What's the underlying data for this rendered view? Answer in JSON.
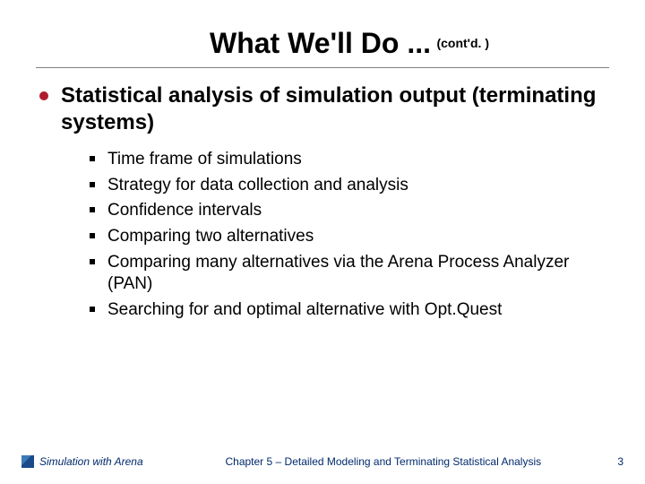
{
  "colors": {
    "bullet_red": "#b01c2e",
    "footer_color": "#002a6c",
    "hr_color": "#808080",
    "background": "#ffffff",
    "text": "#000000"
  },
  "typography": {
    "title_fontsize": 32,
    "title_cont_fontsize": 14,
    "heading_fontsize": 24,
    "subitem_fontsize": 19,
    "footer_fontsize": 12
  },
  "title": {
    "main": "What We'll Do ...",
    "cont": "(cont'd. )"
  },
  "main_heading": "Statistical analysis of simulation output (terminating systems)",
  "sub_items": [
    "Time frame of simulations",
    "Strategy for data collection and analysis",
    "Confidence intervals",
    "Comparing two alternatives",
    "Comparing many alternatives via the Arena Process Analyzer (PAN)",
    "Searching for and optimal alternative with Opt.Quest"
  ],
  "footer": {
    "left": "Simulation with Arena",
    "center": "Chapter 5 – Detailed Modeling and Terminating Statistical Analysis",
    "page": "3"
  }
}
